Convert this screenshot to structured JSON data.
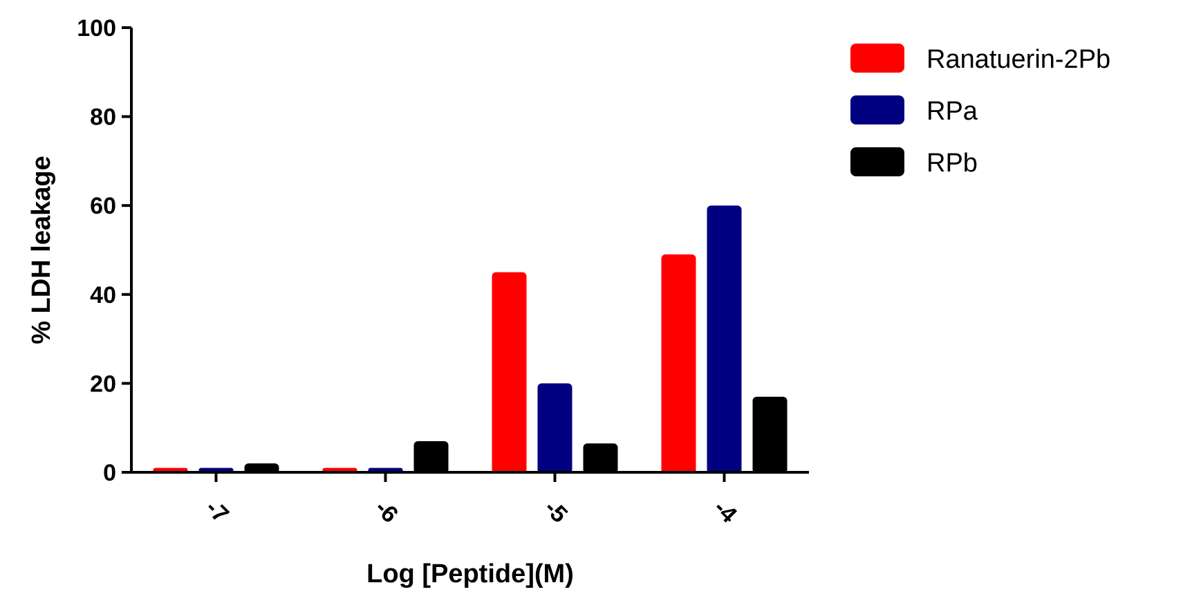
{
  "chart_data": {
    "type": "bar",
    "xlabel": "Log [Peptide](M)",
    "ylabel": "% LDH leakage",
    "categories": [
      "-7",
      "-6",
      "-5",
      "-4"
    ],
    "ylim": [
      0,
      100
    ],
    "yticks": [
      0,
      20,
      40,
      60,
      80,
      100
    ],
    "grid": false,
    "legend_position": "top-right",
    "series": [
      {
        "name": "Ranatuerin-2Pb",
        "color": "#ff0000",
        "values": [
          1,
          1,
          45,
          49
        ]
      },
      {
        "name": "RPa",
        "color": "#000080",
        "values": [
          1,
          1,
          20,
          60
        ]
      },
      {
        "name": "RPb",
        "color": "#000000",
        "values": [
          2,
          7,
          6.5,
          17
        ]
      }
    ]
  }
}
